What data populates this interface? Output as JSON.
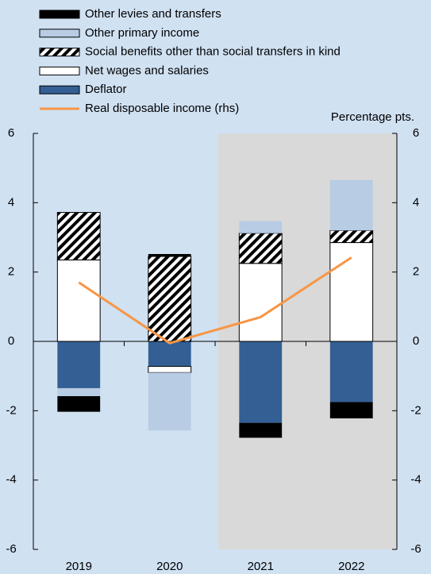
{
  "chart_data": {
    "type": "bar",
    "stacked": true,
    "axis_label": "Percentage pts.",
    "categories": [
      "2019",
      "2020",
      "2021",
      "2022"
    ],
    "series": [
      {
        "name": "Other levies and transfers",
        "color": "#000000",
        "values": [
          -0.45,
          0.07,
          -0.43,
          -0.47
        ]
      },
      {
        "name": "Other primary income",
        "color": "#b8cce4",
        "values": [
          -0.23,
          -1.67,
          0.35,
          1.45
        ]
      },
      {
        "name": "Social benefits other than social transfers in kind",
        "color": "#000000",
        "hatched": true,
        "values": [
          1.37,
          2.45,
          0.87,
          0.35
        ]
      },
      {
        "name": "Net wages and salaries",
        "color": "#ffffff",
        "values": [
          2.35,
          -0.18,
          2.25,
          2.85
        ]
      },
      {
        "name": "Deflator",
        "color": "#335f94",
        "values": [
          -1.35,
          -0.72,
          -2.35,
          -1.75
        ]
      },
      {
        "name": "Real disposable income (rhs)",
        "color": "#f79646",
        "type": "line",
        "axis": "y2",
        "values": [
          1.7,
          -0.05,
          0.7,
          2.42
        ]
      }
    ],
    "ylim": [
      -6,
      6
    ],
    "yticks": [
      -6,
      -4,
      -2,
      0,
      2,
      4,
      6
    ],
    "y2lim": [
      -6,
      6
    ],
    "y2ticks": [
      -6,
      -4,
      -2,
      0,
      2,
      4,
      6
    ]
  }
}
